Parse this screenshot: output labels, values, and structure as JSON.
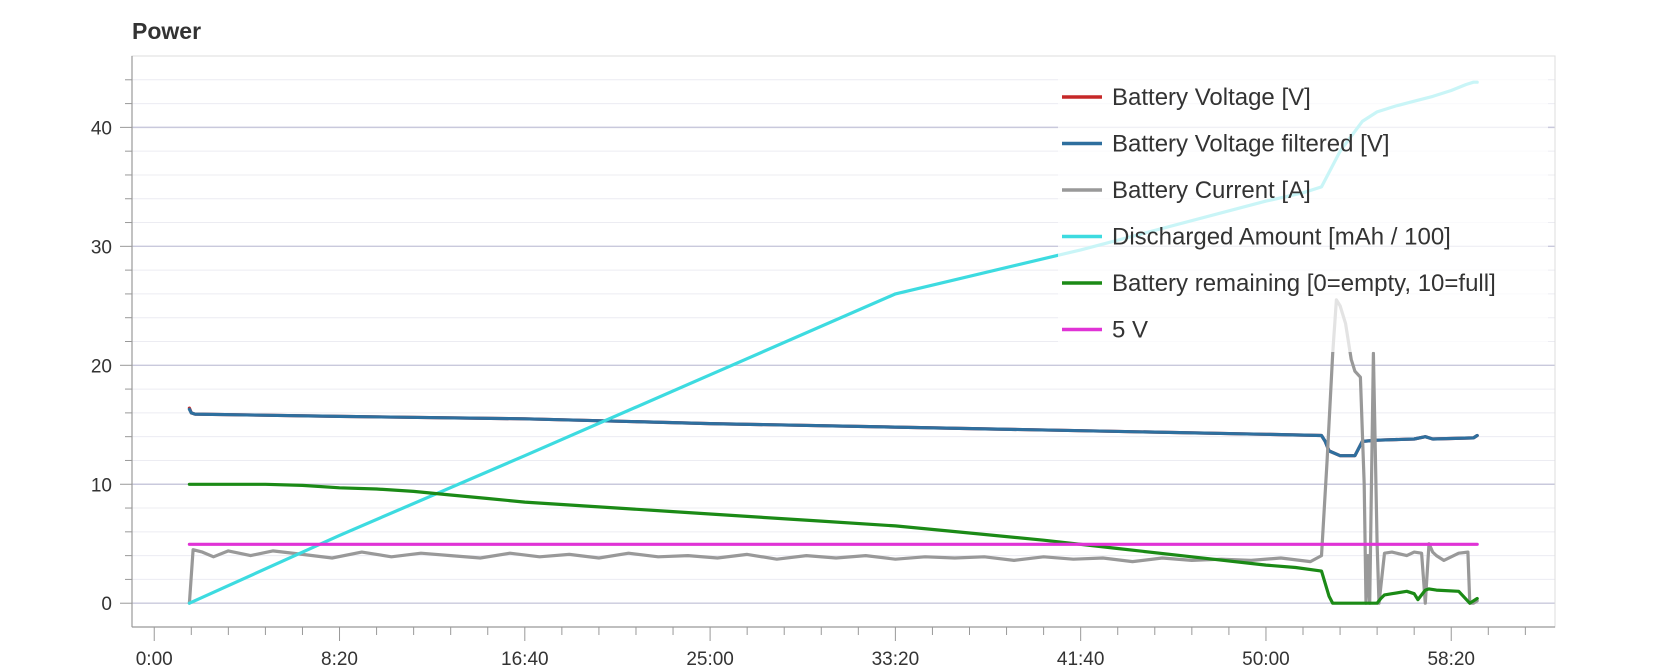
{
  "chart_data": {
    "type": "line",
    "title": "Power",
    "xlabel": "",
    "ylabel": "",
    "xlim": [
      -60,
      3780
    ],
    "ylim": [
      -2,
      46
    ],
    "grid": true,
    "legend_position": "top-right",
    "x_ticks": [
      {
        "value": 0,
        "label": "0:00"
      },
      {
        "value": 500,
        "label": "8:20"
      },
      {
        "value": 1000,
        "label": "16:40"
      },
      {
        "value": 1500,
        "label": "25:00"
      },
      {
        "value": 2000,
        "label": "33:20"
      },
      {
        "value": 2500,
        "label": "41:40"
      },
      {
        "value": 3000,
        "label": "50:00"
      },
      {
        "value": 3500,
        "label": "58:20"
      }
    ],
    "y_ticks": [
      {
        "value": 0,
        "label": "0"
      },
      {
        "value": 10,
        "label": "10"
      },
      {
        "value": 20,
        "label": "20"
      },
      {
        "value": 30,
        "label": "30"
      },
      {
        "value": 40,
        "label": "40"
      }
    ],
    "series": [
      {
        "name": "Battery Voltage [V]",
        "color": "#c62828",
        "x": [
          95,
          100,
          110,
          500,
          1000,
          1500,
          2000,
          2500,
          3000,
          3150,
          3160,
          3170,
          3200,
          3240,
          3260,
          3300,
          3400,
          3430,
          3450,
          3560,
          3570
        ],
        "y": [
          16.4,
          16.0,
          15.9,
          15.7,
          15.5,
          15.1,
          14.8,
          14.5,
          14.2,
          14.1,
          13.6,
          12.8,
          12.4,
          12.4,
          13.6,
          13.7,
          13.8,
          14.0,
          13.8,
          13.9,
          14.1
        ]
      },
      {
        "name": "Battery Voltage filtered [V]",
        "color": "#2e6f9e",
        "x": [
          95,
          100,
          110,
          500,
          1000,
          1500,
          2000,
          2500,
          3000,
          3150,
          3160,
          3170,
          3200,
          3240,
          3260,
          3300,
          3400,
          3430,
          3450,
          3560,
          3570
        ],
        "y": [
          16.3,
          16.0,
          15.9,
          15.7,
          15.5,
          15.1,
          14.8,
          14.5,
          14.2,
          14.1,
          13.6,
          12.8,
          12.4,
          12.4,
          13.6,
          13.7,
          13.8,
          14.0,
          13.8,
          13.9,
          14.1
        ]
      },
      {
        "name": "Battery Current [A]",
        "color": "#999999",
        "x": [
          95,
          105,
          130,
          160,
          200,
          260,
          320,
          400,
          480,
          560,
          640,
          720,
          800,
          880,
          960,
          1040,
          1120,
          1200,
          1280,
          1360,
          1440,
          1520,
          1600,
          1680,
          1760,
          1840,
          1920,
          2000,
          2080,
          2160,
          2240,
          2320,
          2400,
          2480,
          2560,
          2640,
          2720,
          2800,
          2880,
          2960,
          3040,
          3120,
          3150,
          3165,
          3180,
          3190,
          3200,
          3215,
          3230,
          3240,
          3255,
          3265,
          3270,
          3275,
          3280,
          3290,
          3300,
          3305,
          3320,
          3340,
          3380,
          3400,
          3420,
          3430,
          3440,
          3450,
          3460,
          3480,
          3520,
          3545,
          3550,
          3560,
          3570
        ],
        "y": [
          0.0,
          4.5,
          4.3,
          3.9,
          4.4,
          4.0,
          4.4,
          4.1,
          3.8,
          4.3,
          3.9,
          4.2,
          4.0,
          3.8,
          4.2,
          3.9,
          4.1,
          3.8,
          4.2,
          3.9,
          4.0,
          3.8,
          4.1,
          3.7,
          4.0,
          3.8,
          4.0,
          3.7,
          3.9,
          3.8,
          3.9,
          3.6,
          3.9,
          3.7,
          3.8,
          3.5,
          3.8,
          3.6,
          3.7,
          3.6,
          3.8,
          3.5,
          4.0,
          12.0,
          21.0,
          25.5,
          25.0,
          23.5,
          20.5,
          19.5,
          19.0,
          10.0,
          0.0,
          4.0,
          0.0,
          21.0,
          5.0,
          0.0,
          4.2,
          4.3,
          4.0,
          4.3,
          4.2,
          0.0,
          5.0,
          4.3,
          4.0,
          3.6,
          4.2,
          4.3,
          0.0,
          0.0,
          0.2
        ]
      },
      {
        "name": "Discharged Amount [mAh / 100]",
        "color": "#3ddbe0",
        "x": [
          95,
          500,
          1000,
          1500,
          2000,
          2500,
          3000,
          3100,
          3150,
          3200,
          3260,
          3300,
          3350,
          3400,
          3450,
          3500,
          3540,
          3560,
          3570
        ],
        "y": [
          0.0,
          5.7,
          12.4,
          19.2,
          26.0,
          29.7,
          33.8,
          34.5,
          35.0,
          38.0,
          40.5,
          41.3,
          41.8,
          42.2,
          42.6,
          43.1,
          43.6,
          43.8,
          43.8
        ]
      },
      {
        "name": "Battery remaining [0=empty, 10=full]",
        "color": "#1b8a16",
        "x": [
          95,
          300,
          400,
          500,
          600,
          700,
          800,
          900,
          1000,
          1200,
          1400,
          1600,
          1800,
          2000,
          2200,
          2400,
          2600,
          2800,
          3000,
          3080,
          3150,
          3170,
          3180,
          3250,
          3300,
          3310,
          3320,
          3340,
          3380,
          3400,
          3410,
          3430,
          3440,
          3460,
          3520,
          3550,
          3570
        ],
        "y": [
          10.0,
          10.0,
          9.9,
          9.7,
          9.6,
          9.4,
          9.1,
          8.8,
          8.5,
          8.1,
          7.7,
          7.3,
          6.9,
          6.5,
          5.9,
          5.3,
          4.6,
          3.9,
          3.2,
          3.0,
          2.7,
          0.6,
          0.0,
          0.0,
          0.0,
          0.4,
          0.7,
          0.8,
          1.0,
          0.8,
          0.3,
          1.1,
          1.2,
          1.1,
          1.0,
          0.0,
          0.4
        ]
      },
      {
        "name": "5 V",
        "color": "#e033d6",
        "x": [
          95,
          500,
          1000,
          1500,
          2000,
          2500,
          3000,
          3570
        ],
        "y": [
          4.95,
          4.95,
          4.95,
          4.95,
          4.95,
          4.95,
          4.95,
          4.95
        ]
      }
    ]
  }
}
